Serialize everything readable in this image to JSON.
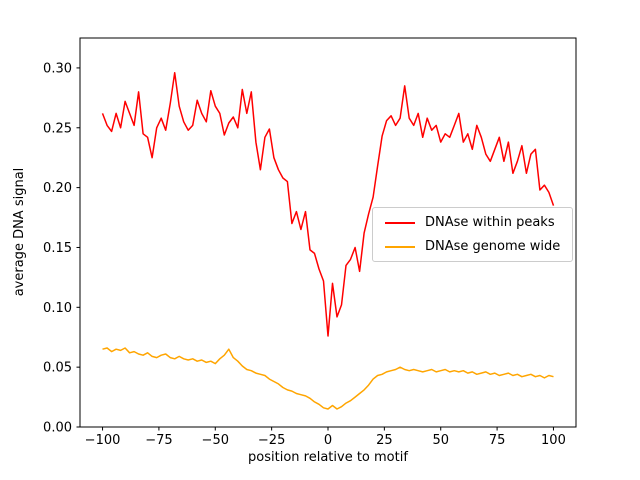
{
  "figure": {
    "background": "#ffffff"
  },
  "chart_data": {
    "type": "line",
    "title": "",
    "xlabel": "position relative to motif",
    "ylabel": "average DNA signal",
    "xlim": [
      -110,
      110
    ],
    "ylim": [
      0,
      0.325
    ],
    "x_ticks": [
      -100,
      -75,
      -50,
      -25,
      0,
      25,
      50,
      75,
      100
    ],
    "y_ticks": [
      0.0,
      0.05,
      0.1,
      0.15,
      0.2,
      0.25,
      0.3
    ],
    "grid": false,
    "legend_position": "center right",
    "x": [
      -100,
      -98,
      -96,
      -94,
      -92,
      -90,
      -88,
      -86,
      -84,
      -82,
      -80,
      -78,
      -76,
      -74,
      -72,
      -70,
      -68,
      -66,
      -64,
      -62,
      -60,
      -58,
      -56,
      -54,
      -52,
      -50,
      -48,
      -46,
      -44,
      -42,
      -40,
      -38,
      -36,
      -34,
      -32,
      -30,
      -28,
      -26,
      -24,
      -22,
      -20,
      -18,
      -16,
      -14,
      -12,
      -10,
      -8,
      -6,
      -4,
      -2,
      0,
      2,
      4,
      6,
      8,
      10,
      12,
      14,
      16,
      18,
      20,
      22,
      24,
      26,
      28,
      30,
      32,
      34,
      36,
      38,
      40,
      42,
      44,
      46,
      48,
      50,
      52,
      54,
      56,
      58,
      60,
      62,
      64,
      66,
      68,
      70,
      72,
      74,
      76,
      78,
      80,
      82,
      84,
      86,
      88,
      90,
      92,
      94,
      96,
      98,
      100
    ],
    "series": [
      {
        "name": "DNAse within peaks",
        "color": "#ff0000",
        "values": [
          0.262,
          0.252,
          0.247,
          0.262,
          0.25,
          0.272,
          0.262,
          0.252,
          0.28,
          0.245,
          0.242,
          0.225,
          0.25,
          0.258,
          0.248,
          0.27,
          0.296,
          0.268,
          0.255,
          0.248,
          0.252,
          0.273,
          0.262,
          0.255,
          0.281,
          0.268,
          0.262,
          0.244,
          0.254,
          0.259,
          0.25,
          0.282,
          0.262,
          0.28,
          0.238,
          0.215,
          0.242,
          0.249,
          0.225,
          0.215,
          0.208,
          0.205,
          0.17,
          0.18,
          0.165,
          0.18,
          0.148,
          0.145,
          0.132,
          0.122,
          0.076,
          0.12,
          0.092,
          0.102,
          0.135,
          0.14,
          0.15,
          0.13,
          0.162,
          0.178,
          0.192,
          0.218,
          0.243,
          0.256,
          0.26,
          0.252,
          0.258,
          0.285,
          0.258,
          0.252,
          0.262,
          0.242,
          0.258,
          0.248,
          0.252,
          0.238,
          0.245,
          0.242,
          0.252,
          0.262,
          0.238,
          0.245,
          0.232,
          0.252,
          0.242,
          0.228,
          0.222,
          0.232,
          0.242,
          0.222,
          0.238,
          0.212,
          0.222,
          0.235,
          0.212,
          0.228,
          0.232,
          0.198,
          0.202,
          0.196,
          0.185
        ]
      },
      {
        "name": "DNAse genome wide",
        "color": "#ffa500",
        "values": [
          0.065,
          0.066,
          0.063,
          0.065,
          0.064,
          0.066,
          0.062,
          0.063,
          0.061,
          0.06,
          0.062,
          0.059,
          0.058,
          0.06,
          0.061,
          0.058,
          0.057,
          0.059,
          0.057,
          0.056,
          0.057,
          0.055,
          0.056,
          0.054,
          0.055,
          0.053,
          0.057,
          0.06,
          0.065,
          0.058,
          0.055,
          0.051,
          0.048,
          0.047,
          0.045,
          0.044,
          0.043,
          0.04,
          0.038,
          0.036,
          0.033,
          0.031,
          0.03,
          0.028,
          0.027,
          0.026,
          0.024,
          0.021,
          0.019,
          0.016,
          0.015,
          0.018,
          0.015,
          0.017,
          0.02,
          0.022,
          0.025,
          0.028,
          0.031,
          0.035,
          0.04,
          0.043,
          0.044,
          0.046,
          0.047,
          0.048,
          0.05,
          0.048,
          0.047,
          0.048,
          0.047,
          0.046,
          0.047,
          0.048,
          0.046,
          0.047,
          0.048,
          0.046,
          0.047,
          0.046,
          0.047,
          0.045,
          0.046,
          0.044,
          0.045,
          0.046,
          0.044,
          0.045,
          0.043,
          0.044,
          0.045,
          0.043,
          0.044,
          0.042,
          0.043,
          0.044,
          0.042,
          0.043,
          0.041,
          0.043,
          0.042
        ]
      }
    ]
  }
}
